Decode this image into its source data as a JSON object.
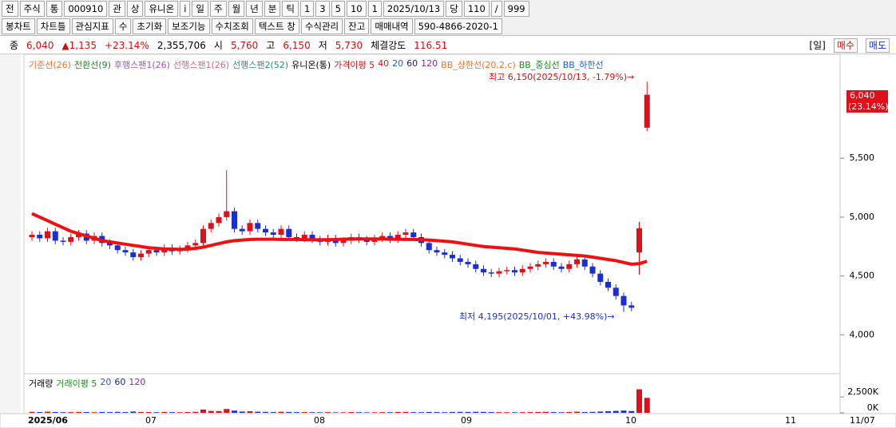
{
  "toolbar": {
    "row1": [
      "전",
      "주식",
      "통",
      "000910",
      "관",
      "상",
      "유니온",
      "i",
      "일",
      "주",
      "월",
      "년",
      "분",
      "틱",
      "1",
      "3",
      "5",
      "10",
      "1",
      "2025/10/13",
      "당",
      "110",
      "/",
      "999"
    ],
    "row2": [
      "봉차트",
      "차트틀",
      "관심지표",
      "수",
      "초기화",
      "보조기능",
      "수치조회",
      "텍스트 창",
      "수식관리",
      "잔고",
      "매매내역",
      "590-4866-2020-1"
    ]
  },
  "info": {
    "label": "종",
    "price": "6,040",
    "change": "▲1,135",
    "rate": "+23.14%",
    "volume": "2,355,706",
    "open_label": "시",
    "open": "5,760",
    "high_label": "고",
    "high": "6,150",
    "low_label": "저",
    "low": "5,730",
    "strength_label": "체결강도",
    "strength": "116.51",
    "period": "[일]",
    "buy": "매수",
    "sell": "매도"
  },
  "chart_data": {
    "type": "candlestick",
    "legend": [
      {
        "label": "기준선(26)",
        "color": "#f07020"
      },
      {
        "label": "전환선(9)",
        "color": "#1a8a1a"
      },
      {
        "label": "후행스팬1(26)",
        "color": "#a050c0"
      },
      {
        "label": "선행스팬1(26)",
        "color": "#e06080"
      },
      {
        "label": "선행스팬2(52)",
        "color": "#2a8a8a"
      },
      {
        "label": "유니온(통)",
        "color": "#000000"
      },
      {
        "label": "가격이평 5",
        "color": "#e0101a"
      },
      {
        "label": "40",
        "color": "#e0101a"
      },
      {
        "label": "20",
        "color": "#1a60d0"
      },
      {
        "label": "60",
        "color": "#1a1a80"
      },
      {
        "label": "120",
        "color": "#8a2a8a"
      },
      {
        "label": "BB_상한선(20,2,c)",
        "color": "#f07020"
      },
      {
        "label": "BB_중심선",
        "color": "#1a8a1a"
      },
      {
        "label": "BB_하한선",
        "color": "#1a60d0"
      }
    ],
    "up_color": "#e0101a",
    "down_color": "#1a2fd0",
    "open": [
      4830,
      4850,
      4820,
      4880,
      4800,
      4790,
      4830,
      4860,
      4800,
      4840,
      4780,
      4760,
      4720,
      4700,
      4660,
      4690,
      4720,
      4700,
      4740,
      4710,
      4730,
      4760,
      4780,
      4900,
      4950,
      5000,
      5050,
      4900,
      4880,
      4950,
      4900,
      4870,
      4850,
      4900,
      4830,
      4820,
      4850,
      4810,
      4790,
      4820,
      4780,
      4800,
      4830,
      4810,
      4790,
      4820,
      4840,
      4810,
      4850,
      4870,
      4830,
      4780,
      4720,
      4700,
      4680,
      4650,
      4620,
      4600,
      4560,
      4530,
      4520,
      4540,
      4550,
      4530,
      4560,
      4580,
      4600,
      4620,
      4580,
      4560,
      4600,
      4640,
      4580,
      4520,
      4450,
      4400,
      4330,
      4250,
      4700,
      5760
    ],
    "high": [
      4880,
      4880,
      4910,
      4910,
      4830,
      4860,
      4890,
      4890,
      4870,
      4870,
      4810,
      4790,
      4750,
      4730,
      4720,
      4750,
      4750,
      4770,
      4770,
      4760,
      4790,
      4810,
      4930,
      4980,
      5030,
      5400,
      5080,
      4930,
      4980,
      4980,
      4930,
      4900,
      4930,
      4930,
      4860,
      4880,
      4880,
      4840,
      4850,
      4850,
      4830,
      4860,
      4860,
      4840,
      4850,
      4870,
      4870,
      4880,
      4900,
      4900,
      4860,
      4810,
      4750,
      4730,
      4710,
      4680,
      4650,
      4630,
      4590,
      4560,
      4570,
      4580,
      4580,
      4590,
      4610,
      4630,
      4650,
      4650,
      4610,
      4630,
      4670,
      4670,
      4610,
      4550,
      4480,
      4430,
      4360,
      4280,
      4960,
      6150
    ],
    "low": [
      4800,
      4790,
      4790,
      4770,
      4760,
      4760,
      4800,
      4770,
      4770,
      4750,
      4730,
      4690,
      4670,
      4630,
      4630,
      4660,
      4670,
      4670,
      4680,
      4680,
      4700,
      4730,
      4750,
      4870,
      4920,
      4970,
      4870,
      4850,
      4850,
      4870,
      4840,
      4820,
      4820,
      4800,
      4790,
      4790,
      4780,
      4760,
      4760,
      4750,
      4750,
      4770,
      4780,
      4760,
      4760,
      4790,
      4780,
      4780,
      4820,
      4800,
      4750,
      4690,
      4670,
      4650,
      4620,
      4590,
      4570,
      4530,
      4500,
      4490,
      4490,
      4510,
      4500,
      4500,
      4530,
      4550,
      4570,
      4550,
      4530,
      4530,
      4570,
      4550,
      4490,
      4420,
      4370,
      4300,
      4195,
      4200,
      4510,
      5730
    ],
    "close": [
      4850,
      4820,
      4880,
      4800,
      4790,
      4830,
      4860,
      4800,
      4840,
      4780,
      4760,
      4720,
      4700,
      4660,
      4690,
      4720,
      4700,
      4740,
      4710,
      4730,
      4760,
      4780,
      4900,
      4950,
      5000,
      5050,
      4900,
      4880,
      4950,
      4900,
      4870,
      4850,
      4900,
      4830,
      4820,
      4850,
      4810,
      4790,
      4820,
      4780,
      4800,
      4830,
      4810,
      4790,
      4820,
      4840,
      4810,
      4850,
      4870,
      4830,
      4780,
      4720,
      4700,
      4680,
      4650,
      4620,
      4600,
      4560,
      4530,
      4520,
      4540,
      4550,
      4530,
      4560,
      4580,
      4600,
      4620,
      4580,
      4560,
      4600,
      4640,
      4580,
      4520,
      4450,
      4400,
      4330,
      4250,
      4230,
      4905,
      6040
    ],
    "ma_line": {
      "color": "#ee1111",
      "values": [
        5030,
        5000,
        4970,
        4940,
        4910,
        4880,
        4860,
        4840,
        4820,
        4800,
        4790,
        4780,
        4770,
        4760,
        4750,
        4740,
        4735,
        4730,
        4728,
        4726,
        4728,
        4735,
        4745,
        4760,
        4775,
        4790,
        4800,
        4805,
        4810,
        4812,
        4812,
        4812,
        4810,
        4810,
        4810,
        4808,
        4808,
        4808,
        4808,
        4810,
        4812,
        4815,
        4815,
        4815,
        4815,
        4815,
        4812,
        4812,
        4810,
        4810,
        4808,
        4805,
        4800,
        4795,
        4790,
        4780,
        4770,
        4760,
        4750,
        4745,
        4740,
        4735,
        4730,
        4720,
        4710,
        4700,
        4695,
        4690,
        4685,
        4680,
        4675,
        4670,
        4660,
        4650,
        4640,
        4630,
        4615,
        4600,
        4605,
        4625
      ]
    },
    "ylim": [
      3690,
      6370
    ],
    "yticks": [
      {
        "value": 4000,
        "label": "4,000"
      },
      {
        "value": 4500,
        "label": "4,500"
      },
      {
        "value": 5000,
        "label": "5,000"
      },
      {
        "value": 5500,
        "label": "5,500"
      }
    ],
    "last_price_label": "6,040",
    "last_change_label": "(23.14%)",
    "high_annotation": "최고 6,150(2025/10/13, -1.79%)→",
    "low_annotation": "최저 4,195(2025/10/01, +43.98%)→",
    "volume_legend": [
      {
        "label": "거래량",
        "color": "#000000"
      },
      {
        "label": "거래이평 5",
        "color": "#1a8a1a"
      },
      {
        "label": "20",
        "color": "#1a60d0"
      },
      {
        "label": "60",
        "color": "#1a1a80"
      },
      {
        "label": "120",
        "color": "#8a2a8a"
      }
    ],
    "volume": [
      150000,
      120000,
      180000,
      130000,
      100000,
      110000,
      140000,
      120000,
      100000,
      130000,
      110000,
      150000,
      120000,
      200000,
      130000,
      120000,
      100000,
      140000,
      110000,
      100000,
      130000,
      160000,
      520000,
      300000,
      280000,
      600000,
      350000,
      200000,
      250000,
      180000,
      150000,
      120000,
      170000,
      140000,
      110000,
      120000,
      100000,
      90000,
      110000,
      80000,
      90000,
      120000,
      100000,
      80000,
      90000,
      110000,
      100000,
      130000,
      150000,
      110000,
      100000,
      140000,
      120000,
      100000,
      130000,
      150000,
      140000,
      160000,
      150000,
      120000,
      110000,
      100000,
      90000,
      110000,
      120000,
      130000,
      160000,
      120000,
      100000,
      130000,
      180000,
      120000,
      150000,
      200000,
      250000,
      300000,
      350000,
      280000,
      3700000,
      2355706
    ],
    "vlim": [
      0,
      5900000
    ],
    "vticks": [
      {
        "value": 0,
        "label": "0K"
      },
      {
        "value": 2500000,
        "label": "2,500K"
      }
    ],
    "x_labels": [
      "2025/06",
      "07",
      "08",
      "09",
      "10",
      "11"
    ],
    "x_end_label": "11/07"
  }
}
